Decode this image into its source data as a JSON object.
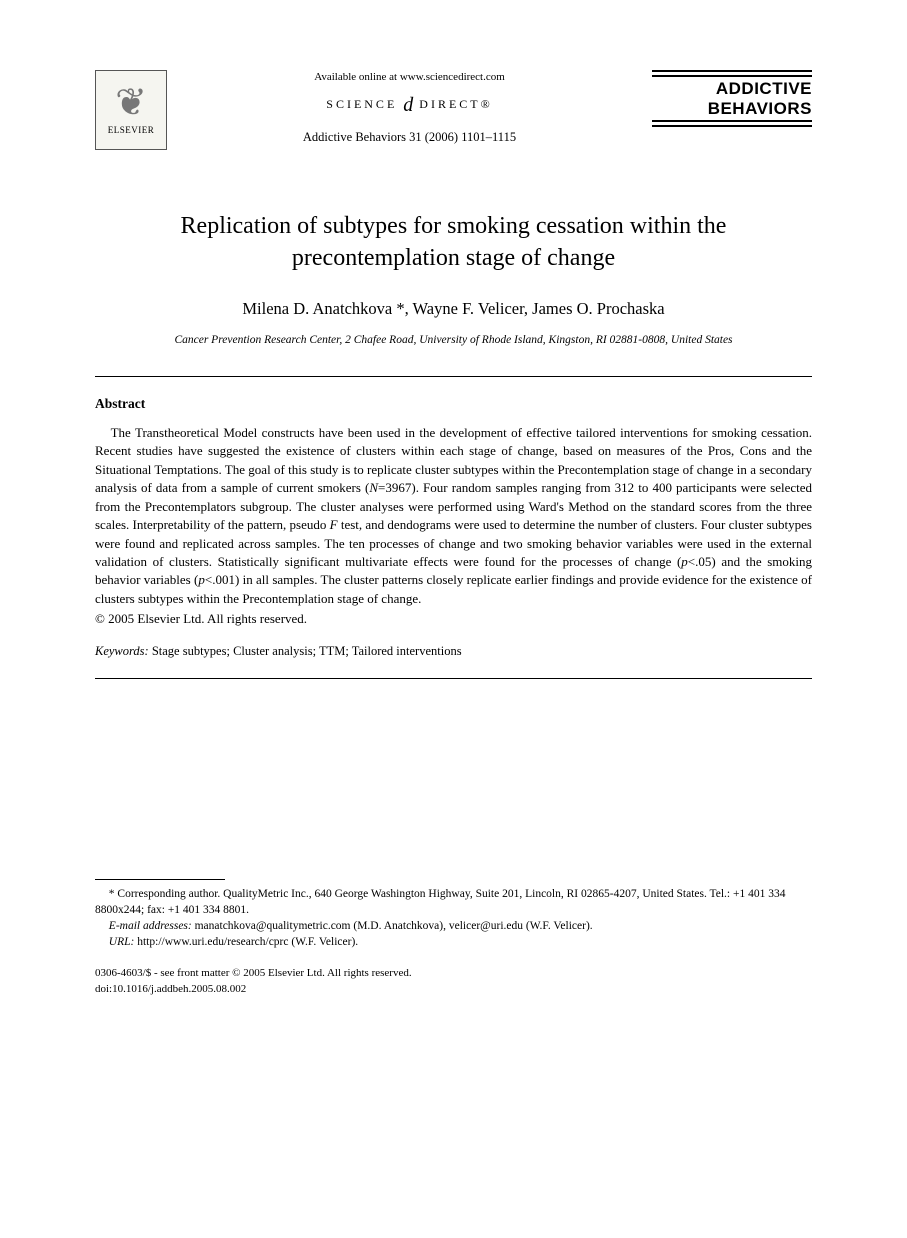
{
  "header": {
    "publisher": "ELSEVIER",
    "available_online": "Available online at www.sciencedirect.com",
    "science_direct_left": "SCIENCE",
    "science_direct_right": "DIRECT®",
    "citation": "Addictive Behaviors 31 (2006) 1101–1115",
    "journal_line1": "ADDICTIVE",
    "journal_line2": "BEHAVIORS"
  },
  "paper": {
    "title": "Replication of subtypes for smoking cessation within the precontemplation stage of change",
    "authors": "Milena D. Anatchkova *, Wayne F. Velicer, James O. Prochaska",
    "affiliation": "Cancer Prevention Research Center, 2 Chafee Road, University of Rhode Island, Kingston, RI 02881-0808, United States",
    "abstract_heading": "Abstract",
    "abstract_p1a": "The Transtheoretical Model constructs have been used in the development of effective tailored interventions for smoking cessation. Recent studies have suggested the existence of clusters within each stage of change, based on measures of the Pros, Cons and the Situational Temptations. The goal of this study is to replicate cluster subtypes within the Precontemplation stage of change in a secondary analysis of data from a sample of current smokers (",
    "abstract_N": "N",
    "abstract_p1b": "=3967). Four random samples ranging from 312 to 400 participants were selected from the Precontemplators subgroup. The cluster analyses were performed using Ward's Method on the standard scores from the three scales. Interpretability of the pattern, pseudo ",
    "abstract_F": "F",
    "abstract_p1c": " test, and dendograms were used to determine the number of clusters. Four cluster subtypes were found and replicated across samples. The ten processes of change and two smoking behavior variables were used in the external validation of clusters. Statistically significant multivariate effects were found for the processes of change (",
    "abstract_p": "p",
    "abstract_p1d": "<.05) and the smoking behavior variables (",
    "abstract_p1e": "<.001) in all samples. The cluster patterns closely replicate earlier findings and provide evidence for the existence of clusters subtypes within the Precontemplation stage of change.",
    "copyright": "© 2005 Elsevier Ltd. All rights reserved.",
    "keywords_label": "Keywords:",
    "keywords": " Stage subtypes; Cluster analysis; TTM; Tailored interventions"
  },
  "footnotes": {
    "corr1": "* Corresponding author. QualityMetric Inc., 640 George Washington Highway, Suite 201, Lincoln, RI 02865-4207, United States. Tel.: +1 401 334 8800x244; fax: +1 401 334 8801.",
    "email_label": "E-mail addresses:",
    "emails": " manatchkova@qualitymetric.com (M.D. Anatchkova), velicer@uri.edu (W.F. Velicer).",
    "url_label": "URL:",
    "url": " http://www.uri.edu/research/cprc (W.F. Velicer)."
  },
  "bottom": {
    "front_matter": "0306-4603/$ - see front matter © 2005 Elsevier Ltd. All rights reserved.",
    "doi": "doi:10.1016/j.addbeh.2005.08.002"
  }
}
